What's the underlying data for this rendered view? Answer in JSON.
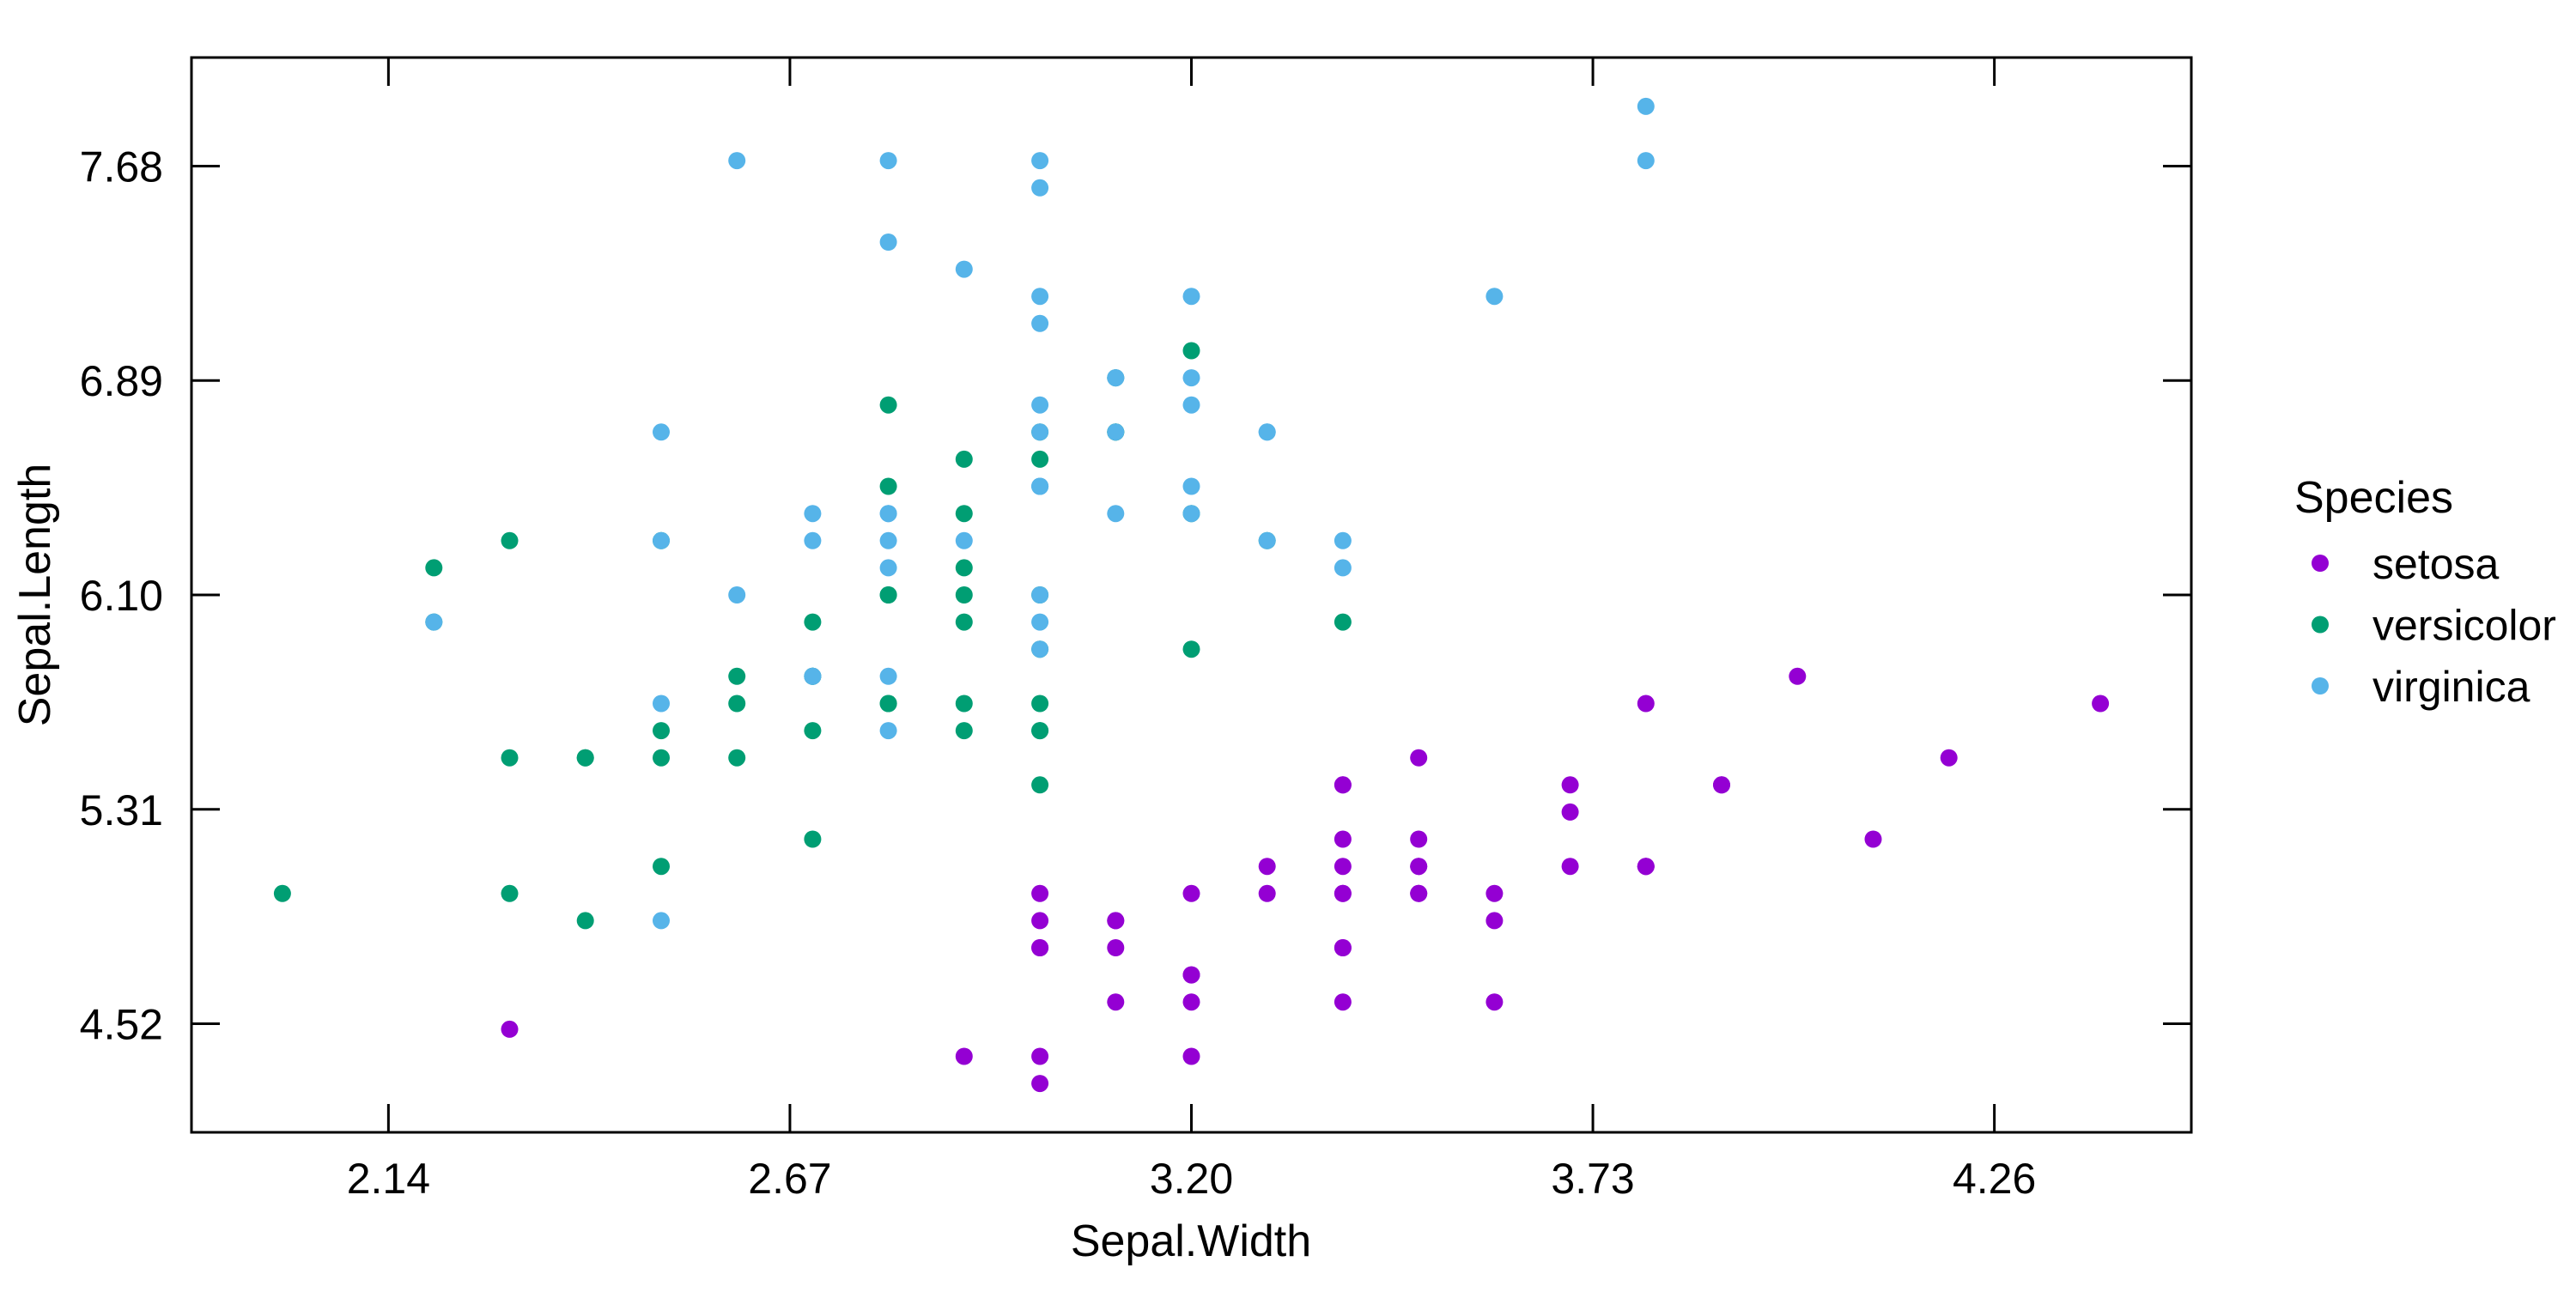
{
  "chart_data": {
    "type": "scatter",
    "xlabel": "Sepal.Width",
    "ylabel": "Sepal.Length",
    "legend_title": "Species",
    "legend_position": "right-outside",
    "grid": false,
    "x_domain": [
      1.88,
      4.52
    ],
    "y_domain": [
      4.12,
      8.08
    ],
    "x_tick_labels": [
      "2.14",
      "2.67",
      "3.20",
      "3.73",
      "4.26"
    ],
    "y_tick_labels": [
      "4.52",
      "5.31",
      "6.10",
      "6.89",
      "7.68"
    ],
    "series": [
      {
        "name": "setosa",
        "color": "#9400D3",
        "points": [
          [
            3.5,
            5.1
          ],
          [
            3.0,
            4.9
          ],
          [
            3.2,
            4.7
          ],
          [
            3.1,
            4.6
          ],
          [
            3.6,
            5.0
          ],
          [
            3.9,
            5.4
          ],
          [
            3.4,
            4.6
          ],
          [
            3.4,
            5.0
          ],
          [
            2.9,
            4.4
          ],
          [
            3.1,
            4.9
          ],
          [
            3.7,
            5.4
          ],
          [
            3.4,
            4.8
          ],
          [
            3.0,
            4.8
          ],
          [
            3.0,
            4.3
          ],
          [
            4.0,
            5.8
          ],
          [
            4.4,
            5.7
          ],
          [
            3.9,
            5.4
          ],
          [
            3.5,
            5.1
          ],
          [
            3.8,
            5.7
          ],
          [
            3.8,
            5.1
          ],
          [
            3.4,
            5.4
          ],
          [
            3.7,
            5.1
          ],
          [
            3.6,
            4.6
          ],
          [
            3.3,
            5.1
          ],
          [
            3.4,
            4.8
          ],
          [
            3.0,
            5.0
          ],
          [
            3.4,
            5.0
          ],
          [
            3.5,
            5.2
          ],
          [
            3.4,
            5.2
          ],
          [
            3.2,
            4.7
          ],
          [
            3.1,
            4.8
          ],
          [
            3.4,
            5.4
          ],
          [
            4.1,
            5.2
          ],
          [
            4.2,
            5.5
          ],
          [
            3.1,
            4.9
          ],
          [
            3.2,
            5.0
          ],
          [
            3.5,
            5.5
          ],
          [
            3.6,
            4.9
          ],
          [
            3.0,
            4.4
          ],
          [
            3.4,
            5.1
          ],
          [
            3.5,
            5.0
          ],
          [
            2.3,
            4.5
          ],
          [
            3.2,
            4.4
          ],
          [
            3.5,
            5.0
          ],
          [
            3.8,
            5.1
          ],
          [
            3.0,
            4.8
          ],
          [
            3.8,
            5.1
          ],
          [
            3.2,
            4.6
          ],
          [
            3.7,
            5.3
          ],
          [
            3.3,
            5.0
          ]
        ]
      },
      {
        "name": "versicolor",
        "color": "#009E73",
        "points": [
          [
            3.2,
            7.0
          ],
          [
            3.2,
            6.4
          ],
          [
            3.1,
            6.9
          ],
          [
            2.3,
            5.5
          ],
          [
            2.8,
            6.5
          ],
          [
            2.8,
            5.7
          ],
          [
            3.3,
            6.3
          ],
          [
            2.4,
            4.9
          ],
          [
            2.9,
            6.6
          ],
          [
            2.7,
            5.2
          ],
          [
            2.0,
            5.0
          ],
          [
            3.0,
            5.9
          ],
          [
            2.2,
            6.0
          ],
          [
            2.9,
            6.1
          ],
          [
            2.9,
            5.6
          ],
          [
            3.1,
            6.7
          ],
          [
            3.0,
            5.6
          ],
          [
            2.7,
            5.8
          ],
          [
            2.2,
            6.2
          ],
          [
            2.5,
            5.6
          ],
          [
            3.2,
            5.9
          ],
          [
            2.8,
            6.1
          ],
          [
            2.5,
            6.3
          ],
          [
            2.8,
            6.1
          ],
          [
            2.9,
            6.4
          ],
          [
            3.0,
            6.6
          ],
          [
            2.8,
            6.8
          ],
          [
            3.0,
            6.7
          ],
          [
            2.9,
            6.0
          ],
          [
            2.6,
            5.7
          ],
          [
            2.4,
            5.5
          ],
          [
            2.4,
            5.5
          ],
          [
            2.7,
            5.8
          ],
          [
            2.7,
            6.0
          ],
          [
            3.0,
            5.4
          ],
          [
            3.4,
            6.0
          ],
          [
            3.1,
            6.7
          ],
          [
            2.3,
            6.3
          ],
          [
            3.0,
            5.6
          ],
          [
            2.5,
            5.5
          ],
          [
            2.6,
            5.5
          ],
          [
            3.0,
            6.1
          ],
          [
            2.6,
            5.8
          ],
          [
            2.3,
            5.0
          ],
          [
            2.7,
            5.6
          ],
          [
            3.0,
            5.7
          ],
          [
            2.9,
            5.7
          ],
          [
            2.9,
            6.2
          ],
          [
            2.5,
            5.1
          ],
          [
            2.8,
            5.7
          ]
        ]
      },
      {
        "name": "virginica",
        "color": "#56B4E9",
        "points": [
          [
            3.3,
            6.3
          ],
          [
            2.7,
            5.8
          ],
          [
            3.0,
            7.1
          ],
          [
            2.9,
            6.3
          ],
          [
            3.0,
            6.5
          ],
          [
            3.0,
            7.6
          ],
          [
            2.5,
            4.9
          ],
          [
            2.9,
            7.3
          ],
          [
            2.5,
            6.7
          ],
          [
            3.6,
            7.2
          ],
          [
            3.2,
            6.5
          ],
          [
            2.7,
            6.4
          ],
          [
            3.0,
            6.8
          ],
          [
            2.5,
            5.7
          ],
          [
            2.8,
            5.8
          ],
          [
            3.2,
            6.4
          ],
          [
            3.0,
            6.5
          ],
          [
            3.8,
            7.7
          ],
          [
            2.6,
            7.7
          ],
          [
            2.2,
            6.0
          ],
          [
            3.2,
            6.9
          ],
          [
            2.8,
            5.6
          ],
          [
            2.8,
            7.7
          ],
          [
            2.7,
            6.3
          ],
          [
            3.3,
            6.7
          ],
          [
            3.2,
            7.2
          ],
          [
            2.8,
            6.2
          ],
          [
            3.0,
            6.1
          ],
          [
            2.8,
            6.4
          ],
          [
            3.0,
            7.2
          ],
          [
            2.8,
            7.4
          ],
          [
            3.8,
            7.9
          ],
          [
            2.8,
            6.4
          ],
          [
            2.8,
            6.3
          ],
          [
            2.6,
            6.1
          ],
          [
            3.0,
            7.7
          ],
          [
            3.4,
            6.3
          ],
          [
            3.1,
            6.4
          ],
          [
            3.0,
            6.0
          ],
          [
            3.1,
            6.9
          ],
          [
            3.1,
            6.7
          ],
          [
            3.1,
            6.9
          ],
          [
            2.7,
            5.8
          ],
          [
            3.2,
            6.8
          ],
          [
            3.3,
            6.7
          ],
          [
            3.0,
            6.7
          ],
          [
            2.5,
            6.3
          ],
          [
            3.0,
            6.5
          ],
          [
            3.4,
            6.2
          ],
          [
            3.0,
            5.9
          ]
        ]
      }
    ],
    "style": {
      "axis_color": "#000000",
      "background": "#ffffff",
      "marker_radius": 10,
      "tick_length": 33,
      "line_width": 3
    }
  }
}
